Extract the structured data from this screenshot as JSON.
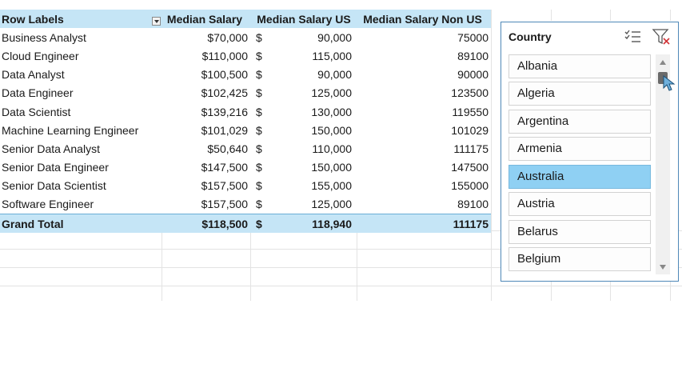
{
  "pivot": {
    "headers": [
      "Row Labels",
      "Median Salary",
      "Median Salary US",
      "Median Salary Non US"
    ],
    "rows": [
      {
        "label": "Business Analyst",
        "ms": "$70,000",
        "us_sym": "$",
        "us": "90,000",
        "non": "75000"
      },
      {
        "label": "Cloud Engineer",
        "ms": "$110,000",
        "us_sym": "$",
        "us": "115,000",
        "non": "89100"
      },
      {
        "label": "Data Analyst",
        "ms": "$100,500",
        "us_sym": "$",
        "us": "90,000",
        "non": "90000"
      },
      {
        "label": "Data Engineer",
        "ms": "$102,425",
        "us_sym": "$",
        "us": "125,000",
        "non": "123500"
      },
      {
        "label": "Data Scientist",
        "ms": "$139,216",
        "us_sym": "$",
        "us": "130,000",
        "non": "119550"
      },
      {
        "label": "Machine Learning Engineer",
        "ms": "$101,029",
        "us_sym": "$",
        "us": "150,000",
        "non": "101029"
      },
      {
        "label": "Senior Data Analyst",
        "ms": "$50,640",
        "us_sym": "$",
        "us": "110,000",
        "non": "111175"
      },
      {
        "label": "Senior Data Engineer",
        "ms": "$147,500",
        "us_sym": "$",
        "us": "150,000",
        "non": "147500"
      },
      {
        "label": "Senior Data Scientist",
        "ms": "$157,500",
        "us_sym": "$",
        "us": "155,000",
        "non": "155000"
      },
      {
        "label": "Software Engineer",
        "ms": "$157,500",
        "us_sym": "$",
        "us": "125,000",
        "non": "89100"
      }
    ],
    "total": {
      "label": "Grand Total",
      "ms": "$118,500",
      "us_sym": "$",
      "us": "118,940",
      "non": "111175"
    }
  },
  "slicer": {
    "title": "Country",
    "items": [
      "Albania",
      "Algeria",
      "Argentina",
      "Armenia",
      "Australia",
      "Austria",
      "Belarus",
      "Belgium"
    ],
    "selected": "Australia",
    "icons": [
      "multi-select-icon",
      "clear-filter-icon"
    ]
  },
  "colors": {
    "header_fill": "#c5e5f6",
    "selected_item": "#8fd0f3",
    "slicer_border": "#4f88b8"
  }
}
